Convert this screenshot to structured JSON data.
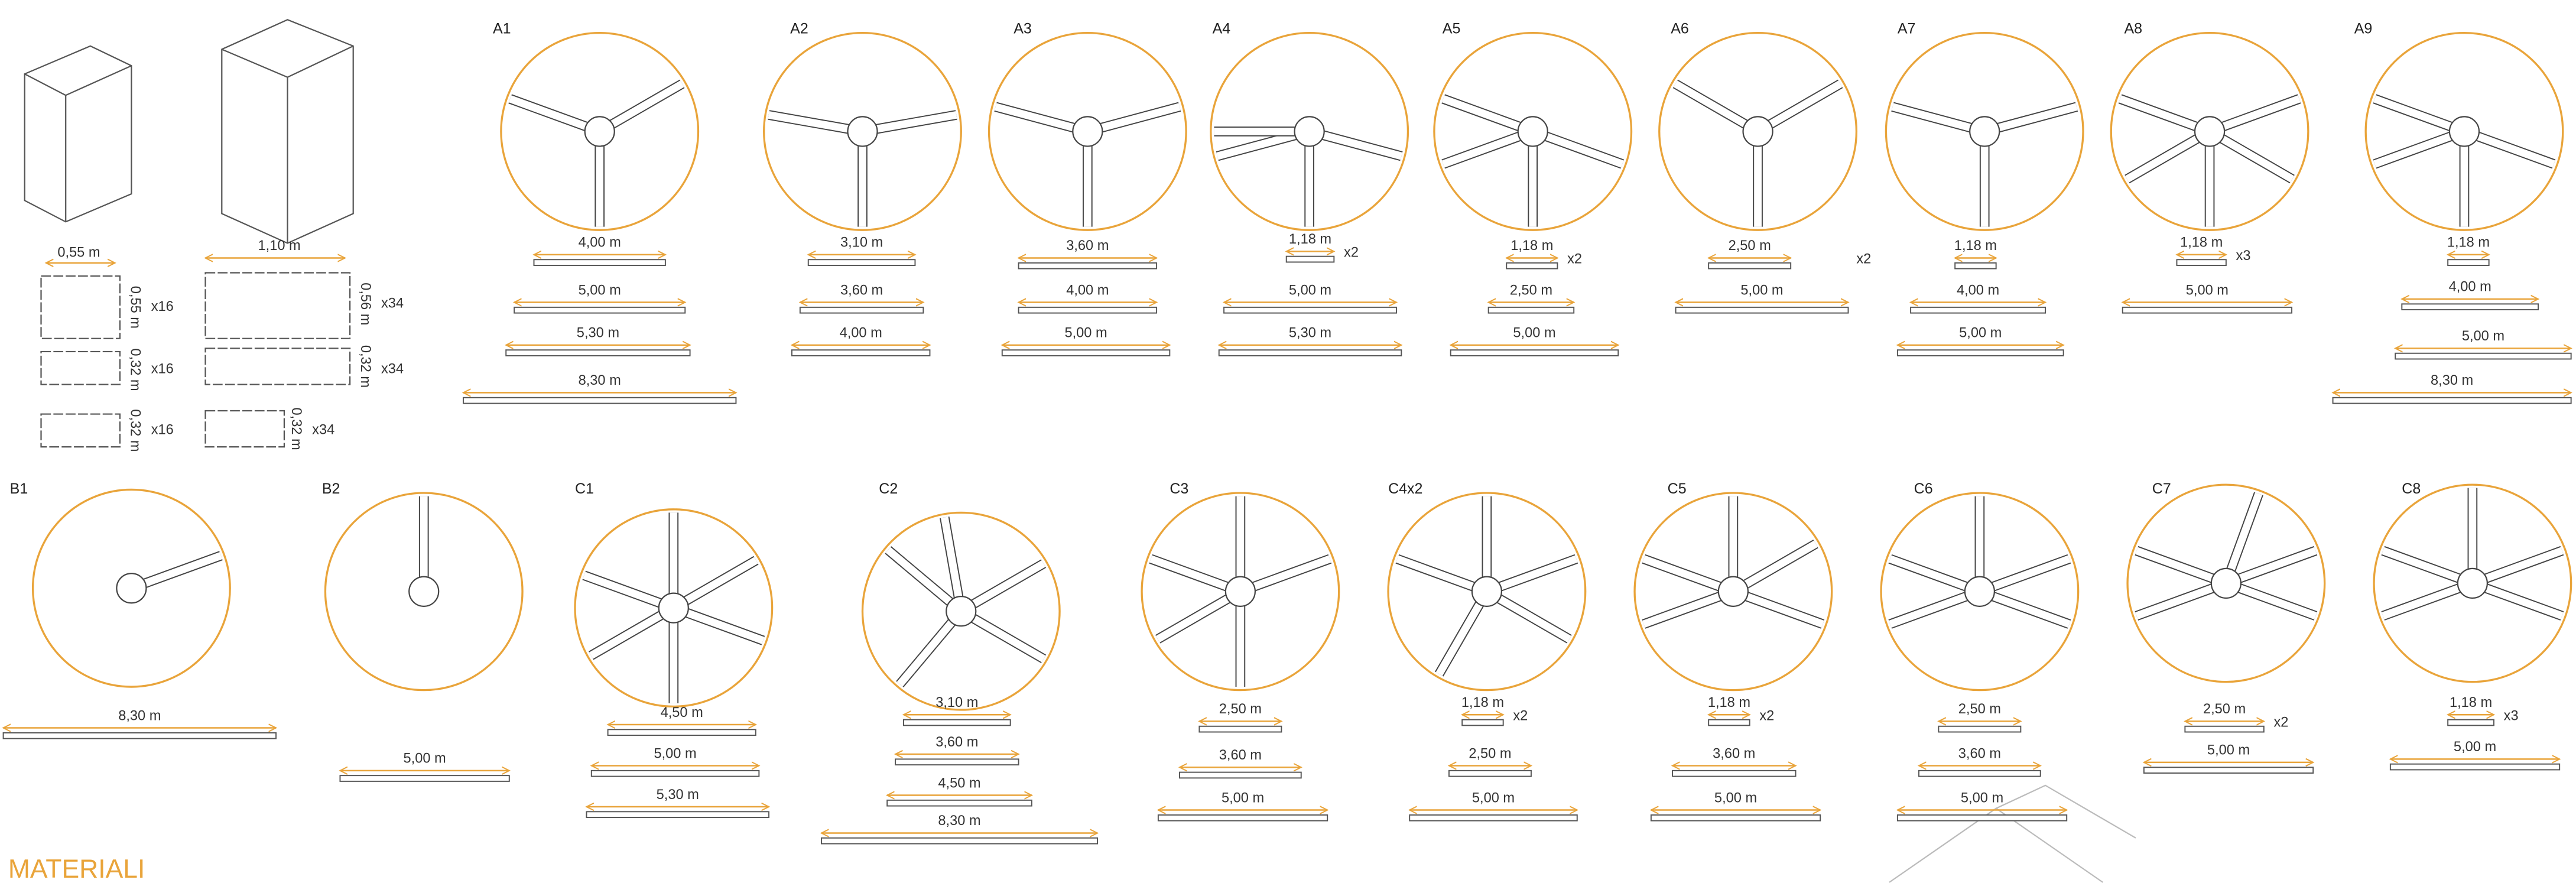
{
  "panels": {
    "widths": [
      "0,55 m",
      "1,10 m"
    ],
    "rows": [
      {
        "small_height": "0,55 m",
        "small_count": "x16",
        "large_height": "0,56 m",
        "large_count": "x34"
      },
      {
        "small_height": "0,32 m",
        "small_count": "x16",
        "large_height": "0,32 m",
        "large_count": "x34"
      },
      {
        "small_height": "0,32 m",
        "small_count": "x16",
        "large_height": "0,32 m",
        "large_count": "x34"
      }
    ]
  },
  "joints_top": [
    {
      "label": "A1",
      "pipes": [
        {
          "length": "4,00 m"
        },
        {
          "length": "5,00 m"
        },
        {
          "length": "5,30 m"
        },
        {
          "length": "8,30 m"
        }
      ]
    },
    {
      "label": "A2",
      "pipes": [
        {
          "length": "3,10 m"
        },
        {
          "length": "3,60 m"
        },
        {
          "length": "4,00 m"
        }
      ]
    },
    {
      "label": "A3",
      "pipes": [
        {
          "length": "3,60 m"
        },
        {
          "length": "4,00 m"
        },
        {
          "length": "5,00 m"
        }
      ]
    },
    {
      "label": "A4",
      "pipes": [
        {
          "length": "1,18 m",
          "count": "x2"
        },
        {
          "length": "5,00 m"
        },
        {
          "length": "5,30 m"
        }
      ]
    },
    {
      "label": "A5",
      "pipes": [
        {
          "length": "1,18 m",
          "count": "x2"
        },
        {
          "length": "2,50 m"
        },
        {
          "length": "5,00 m"
        }
      ]
    },
    {
      "label": "A6",
      "pipes": [
        {
          "length": "2,50 m",
          "count": "x2"
        },
        {
          "length": "5,00 m"
        }
      ]
    },
    {
      "label": "A7",
      "pipes": [
        {
          "length": "1,18 m"
        },
        {
          "length": "4,00 m"
        },
        {
          "length": "5,00 m"
        }
      ]
    },
    {
      "label": "A8",
      "pipes": [
        {
          "length": "1,18 m",
          "count": "x3"
        },
        {
          "length": "5,00 m"
        }
      ]
    },
    {
      "label": "A9",
      "pipes": [
        {
          "length": "1,18 m"
        },
        {
          "length": "4,00 m"
        },
        {
          "length": "5,00 m"
        },
        {
          "length": "8,30 m"
        }
      ]
    }
  ],
  "joints_bottom": [
    {
      "label": "B1",
      "pipes": [
        {
          "length": "8,30 m"
        }
      ]
    },
    {
      "label": "B2",
      "pipes": [
        {
          "length": "5,00 m"
        }
      ]
    },
    {
      "label": "C1",
      "pipes": [
        {
          "length": "4,50 m"
        },
        {
          "length": "5,00 m"
        },
        {
          "length": "5,30 m"
        }
      ]
    },
    {
      "label": "C2",
      "pipes": [
        {
          "length": "3,10 m"
        },
        {
          "length": "3,60 m"
        },
        {
          "length": "4,50 m"
        },
        {
          "length": "8,30 m"
        }
      ]
    },
    {
      "label": "C3",
      "pipes": [
        {
          "length": "2,50 m"
        },
        {
          "length": "3,60 m"
        },
        {
          "length": "5,00 m"
        }
      ]
    },
    {
      "label": "C4x2",
      "pipes": [
        {
          "length": "1,18 m",
          "count": "x2"
        },
        {
          "length": "2,50 m"
        },
        {
          "length": "5,00 m"
        }
      ]
    },
    {
      "label": "C5",
      "pipes": [
        {
          "length": "1,18 m",
          "count": "x2"
        },
        {
          "length": "3,60 m"
        },
        {
          "length": "5,00 m"
        }
      ]
    },
    {
      "label": "C6",
      "pipes": [
        {
          "length": "2,50 m"
        },
        {
          "length": "3,60 m"
        },
        {
          "length": "5,00 m"
        }
      ]
    },
    {
      "label": "C7",
      "pipes": [
        {
          "length": "2,50 m",
          "count": "x2"
        },
        {
          "length": "5,00 m"
        }
      ]
    },
    {
      "label": "C8",
      "pipes": [
        {
          "length": "1,18 m",
          "count": "x3"
        },
        {
          "length": "5,00 m"
        }
      ]
    }
  ],
  "footer": {
    "title": "MATERIALI"
  }
}
